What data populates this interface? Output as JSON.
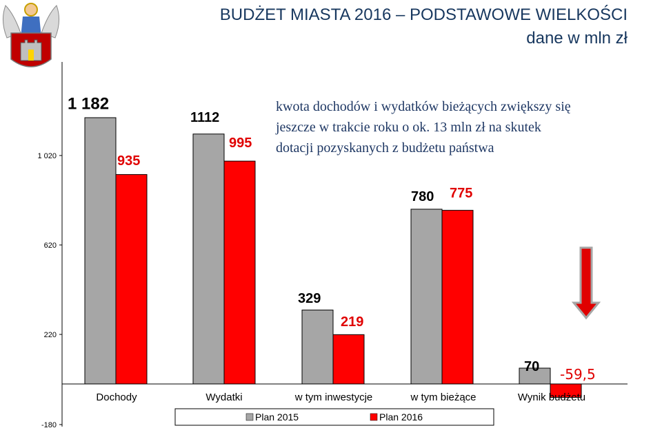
{
  "header": {
    "title": "BUDŻET MIASTA 2016 – PODSTAWOWE WIELKOŚCI",
    "subtitle": "dane w mln zł",
    "logo": "torun-coat-of-arms"
  },
  "annotation": {
    "lines": [
      "kwota  dochodów i wydatków bieżących zwiększy się",
      "jeszcze w trakcie roku  o ok. 13 mln zł na skutek",
      "dotacji  pozyskanych  z budżetu państwa"
    ]
  },
  "arrow": {
    "icon": "red-down-arrow-icon",
    "color": "#e00000"
  },
  "chart_data": {
    "type": "bar",
    "categories": [
      "Dochody",
      "Wydatki",
      "w tym inwestycje",
      "w tym  bieżące",
      "Wynik budżetu"
    ],
    "series": [
      {
        "name": "Plan 2015",
        "color": "#a6a6a6",
        "values": [
          1182,
          1112,
          329,
          780,
          70
        ],
        "labels": [
          "1 182",
          "1112",
          "329",
          "780",
          "70"
        ],
        "label_color": "#000000"
      },
      {
        "name": "Plan  2016",
        "color": "#ff0000",
        "values": [
          935,
          995,
          219,
          775,
          -59.5
        ],
        "labels": [
          "935",
          "995",
          "219",
          "775",
          "-59,5"
        ],
        "label_color": "#e00000"
      }
    ],
    "yaxis": {
      "ticks": [
        -180,
        220,
        620,
        1020
      ],
      "tick_labels": [
        "-180",
        "220",
        "620",
        "1 020"
      ],
      "axis_break": [
        220,
        620
      ]
    },
    "legend": {
      "placement": "bottom",
      "entries": [
        "Plan 2015",
        "Plan  2016"
      ]
    },
    "grid": false
  }
}
